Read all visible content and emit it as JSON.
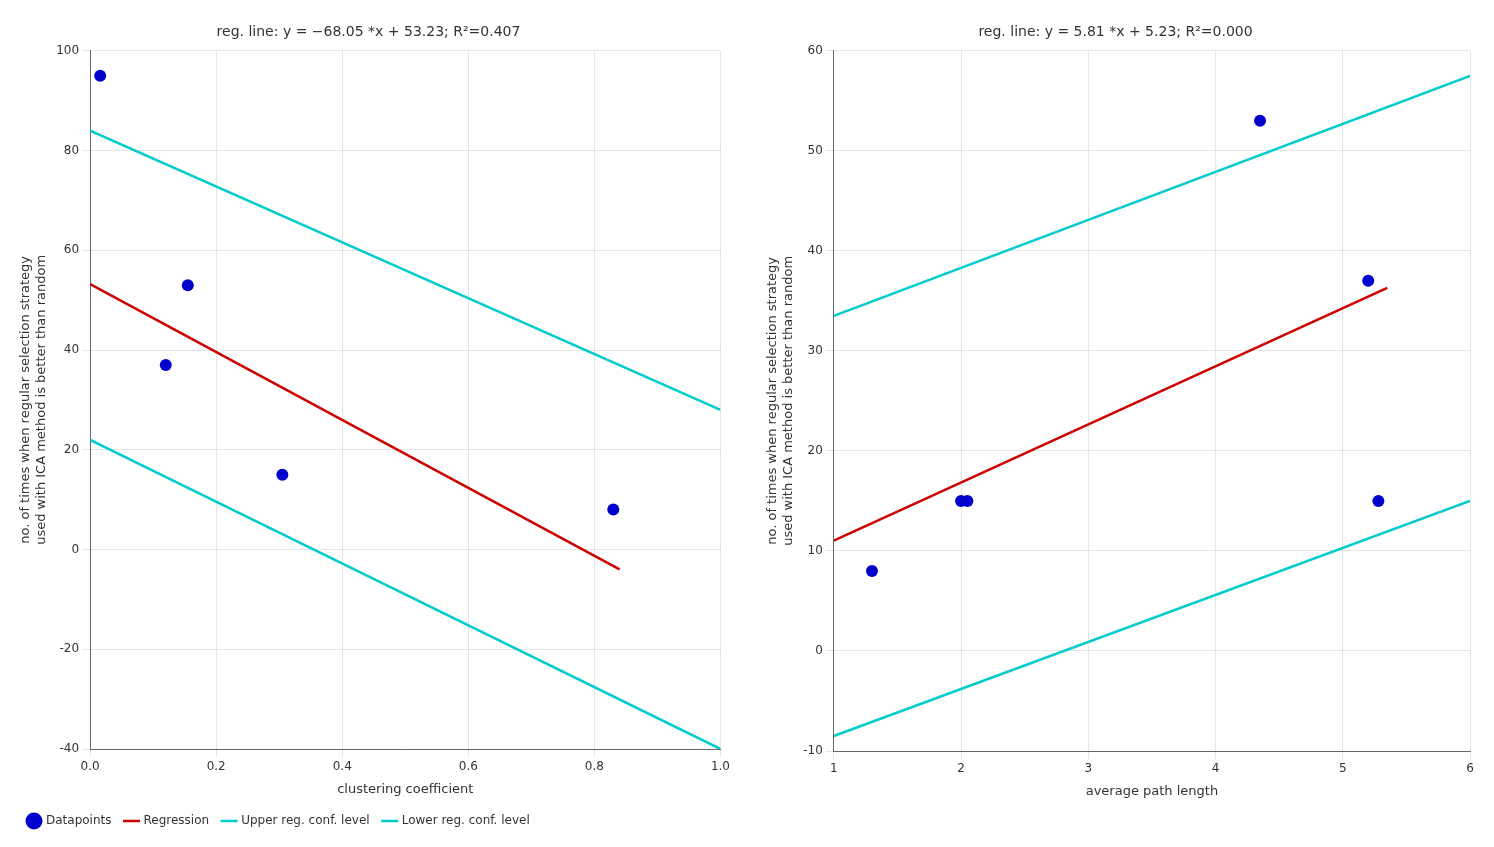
{
  "chart_data": [
    {
      "type": "scatter",
      "title": "reg. line: y = −68.05 *x + 53.23; R²=0.407",
      "xlabel": "clustering coefficient",
      "ylabel": "no. of times when regular selection strategy\nused with ICA method is better than random",
      "xlim": [
        0,
        1
      ],
      "ylim": [
        -40,
        100
      ],
      "xticks": [
        {
          "value": 0,
          "label": "0.0"
        },
        0.2,
        0.4,
        0.6,
        0.8,
        {
          "value": 1.0,
          "label": "1.0"
        }
      ],
      "yticks": [
        -40,
        -20,
        0,
        20,
        40,
        60,
        80,
        100
      ],
      "grid": true,
      "legend": "lower left",
      "series": [
        {
          "name": "Datapoints",
          "type": "scatter",
          "marker": "circle",
          "color": "#0000CD",
          "x": [
            0.016,
            0.12,
            0.155,
            0.305,
            0.83
          ],
          "values": [
            95,
            37,
            53,
            15,
            8
          ]
        },
        {
          "name": "Regression",
          "type": "line",
          "line_style": "solid",
          "color": "#CC0000",
          "x": [
            0.0,
            0.84
          ],
          "values": [
            53.23,
            -4.0
          ]
        },
        {
          "name": "Upper reg. conf. level",
          "type": "line",
          "line_style": "solid",
          "color": "#00CCCC",
          "x": [
            0.0,
            1.0
          ],
          "values": [
            84.0,
            28.0
          ]
        },
        {
          "name": "Lower reg. conf. level",
          "type": "line",
          "line_style": "solid",
          "color": "#00CCCC",
          "x": [
            0.0,
            1.0
          ],
          "values": [
            22.0,
            -40.0
          ]
        }
      ]
    },
    {
      "type": "scatter",
      "title": "reg. line: y = 5.81 *x + 5.23; R²=0.000",
      "xlabel": "average path length",
      "ylabel": "no. of times when regular selection strategy\nused with ICA method is better than random",
      "xlim": [
        1,
        6
      ],
      "ylim": [
        -10,
        60
      ],
      "xticks": [
        1,
        2,
        3,
        4,
        5,
        6
      ],
      "yticks": [
        -10,
        0,
        10,
        20,
        30,
        40,
        50,
        60
      ],
      "grid": true,
      "series": [
        {
          "name": "Datapoints",
          "type": "scatter",
          "marker": "circle",
          "color": "#0000CD",
          "x": [
            1.3,
            2.0,
            2.05,
            4.35,
            5.2,
            5.28
          ],
          "values": [
            8,
            15,
            15,
            53,
            37,
            15
          ]
        },
        {
          "name": "Regression",
          "type": "line",
          "line_style": "solid",
          "color": "#CC0000",
          "x": [
            1.0,
            5.35
          ],
          "values": [
            11.04,
            36.3
          ]
        },
        {
          "name": "Upper reg. conf. level",
          "type": "line",
          "line_style": "solid",
          "color": "#00CCCC",
          "x": [
            1.0,
            6.0
          ],
          "values": [
            33.5,
            57.5
          ]
        },
        {
          "name": "Lower reg. conf. level",
          "type": "line",
          "line_style": "solid",
          "color": "#00CCCC",
          "x": [
            1.0,
            6.0
          ],
          "values": [
            -8.5,
            15.0
          ]
        }
      ]
    }
  ]
}
